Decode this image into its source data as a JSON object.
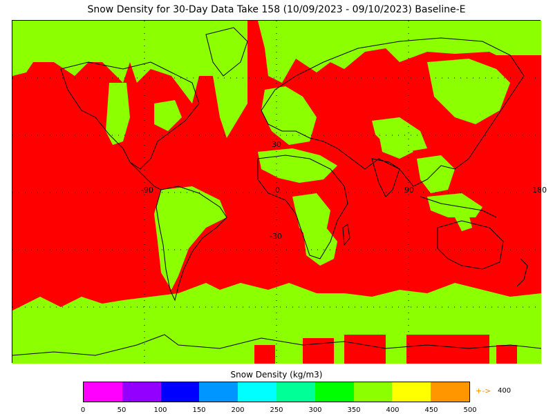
{
  "title": "Snow Density for 30-Day Data Take 158 (10/09/2023 - 09/10/2023) Baseline-E",
  "map": {
    "lat_labels": [
      "30",
      "-30"
    ],
    "lon_labels": [
      "-90",
      "0",
      "90",
      "180"
    ],
    "colors": {
      "background": "#ff0000",
      "snow_class": "#8cff00",
      "land_outline": "#000000",
      "grid": "#000000"
    }
  },
  "legend": {
    "title": "Snow Density (kg/m3)",
    "ticks": [
      "0",
      "50",
      "100",
      "150",
      "200",
      "250",
      "300",
      "350",
      "400",
      "450",
      "500"
    ],
    "colors": [
      "#ff00ff",
      "#9400ff",
      "#0000ff",
      "#0096ff",
      "#00ffff",
      "#00ff96",
      "#00ff00",
      "#8cff00",
      "#ffff00",
      "#ff9600"
    ],
    "marker_arrow": "+->",
    "marker_value": "400"
  }
}
